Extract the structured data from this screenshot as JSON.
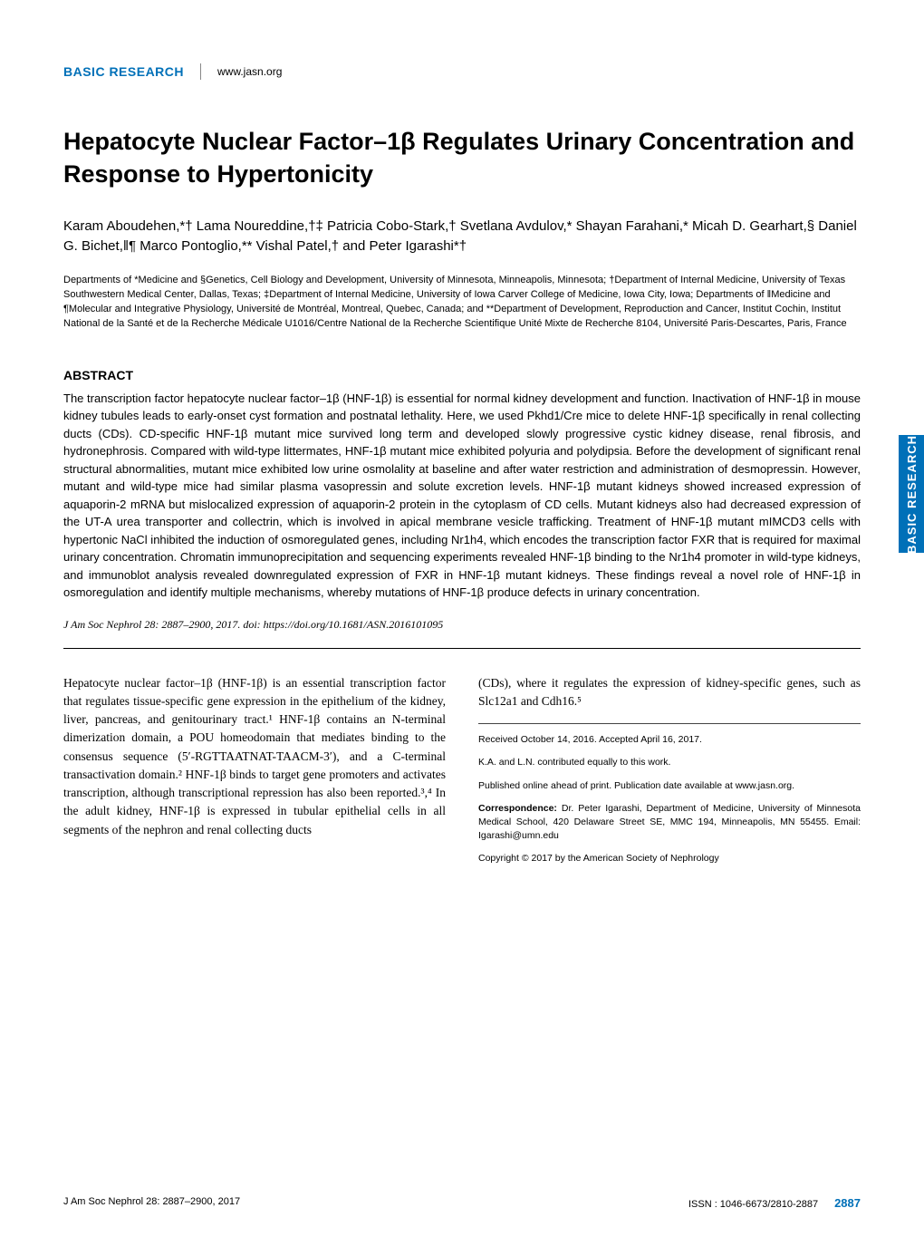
{
  "header": {
    "section_label": "BASIC RESEARCH",
    "section_color": "#0070b8",
    "website": "www.jasn.org"
  },
  "title": "Hepatocyte Nuclear Factor–1β Regulates Urinary Concentration and Response to Hypertonicity",
  "authors": "Karam Aboudehen,*† Lama Noureddine,†‡ Patricia Cobo-Stark,† Svetlana Avdulov,* Shayan Farahani,* Micah D. Gearhart,§ Daniel G. Bichet,‖¶ Marco Pontoglio,** Vishal Patel,† and Peter Igarashi*†",
  "affiliations": "Departments of *Medicine and §Genetics, Cell Biology and Development, University of Minnesota, Minneapolis, Minnesota; †Department of Internal Medicine, University of Texas Southwestern Medical Center, Dallas, Texas; ‡Department of Internal Medicine, University of Iowa Carver College of Medicine, Iowa City, Iowa; Departments of ‖Medicine and ¶Molecular and Integrative Physiology, Université de Montréal, Montreal, Quebec, Canada; and **Department of Development, Reproduction and Cancer, Institut Cochin, Institut National de la Santé et de la Recherche Médicale U1016/Centre National de la Recherche Scientifique Unité Mixte de Recherche 8104, Université Paris-Descartes, Paris, France",
  "abstract": {
    "heading": "ABSTRACT",
    "body": "The transcription factor hepatocyte nuclear factor–1β (HNF-1β) is essential for normal kidney development and function. Inactivation of HNF-1β in mouse kidney tubules leads to early-onset cyst formation and postnatal lethality. Here, we used Pkhd1/Cre mice to delete HNF-1β specifically in renal collecting ducts (CDs). CD-specific HNF-1β mutant mice survived long term and developed slowly progressive cystic kidney disease, renal fibrosis, and hydronephrosis. Compared with wild-type littermates, HNF-1β mutant mice exhibited polyuria and polydipsia. Before the development of significant renal structural abnormalities, mutant mice exhibited low urine osmolality at baseline and after water restriction and administration of desmopressin. However, mutant and wild-type mice had similar plasma vasopressin and solute excretion levels. HNF-1β mutant kidneys showed increased expression of aquaporin-2 mRNA but mislocalized expression of aquaporin-2 protein in the cytoplasm of CD cells. Mutant kidneys also had decreased expression of the UT-A urea transporter and collectrin, which is involved in apical membrane vesicle trafficking. Treatment of HNF-1β mutant mIMCD3 cells with hypertonic NaCl inhibited the induction of osmoregulated genes, including Nr1h4, which encodes the transcription factor FXR that is required for maximal urinary concentration. Chromatin immunoprecipitation and sequencing experiments revealed HNF-1β binding to the Nr1h4 promoter in wild-type kidneys, and immunoblot analysis revealed downregulated expression of FXR in HNF-1β mutant kidneys. These findings reveal a novel role of HNF-1β in osmoregulation and identify multiple mechanisms, whereby mutations of HNF-1β produce defects in urinary concentration."
  },
  "citation": "J Am Soc Nephrol 28: 2887–2900, 2017. doi: https://doi.org/10.1681/ASN.2016101095",
  "body_columns": {
    "left": "Hepatocyte nuclear factor–1β (HNF-1β) is an essential transcription factor that regulates tissue-specific gene expression in the epithelium of the kidney, liver, pancreas, and genitourinary tract.¹ HNF-1β contains an N-terminal dimerization domain, a POU homeodomain that mediates binding to the consensus sequence (5′-RGTTAATNAT-TAACM-3′), and a C-terminal transactivation domain.² HNF-1β binds to target gene promoters and activates transcription, although transcriptional repression has also been reported.³,⁴ In the adult kidney, HNF-1β is expressed in tubular epithelial cells in all segments of the nephron and renal collecting ducts",
    "right_intro": "(CDs), where it regulates the expression of kidney-specific genes, such as Slc12a1 and Cdh16.⁵",
    "right_meta": {
      "received": "Received October 14, 2016. Accepted April 16, 2017.",
      "contrib": "K.A. and L.N. contributed equally to this work.",
      "pub": "Published online ahead of print. Publication date available at www.jasn.org.",
      "correspondence_label": "Correspondence:",
      "correspondence": " Dr. Peter Igarashi, Department of Medicine, University of Minnesota Medical School, 420 Delaware Street SE, MMC 194, Minneapolis, MN 55455. Email: Igarashi@umn.edu",
      "copyright": "Copyright © 2017 by the American Society of Nephrology"
    }
  },
  "side_tab": {
    "label": "BASIC RESEARCH",
    "bg_color": "#0070b8",
    "text_color": "#ffffff"
  },
  "footer": {
    "left": "J Am Soc Nephrol 28: 2887–2900, 2017",
    "issn": "ISSN : 1046-6673/2810-2887",
    "page": "2887",
    "page_color": "#0070b8"
  },
  "colors": {
    "accent": "#0070b8",
    "text": "#000000",
    "bg": "#ffffff"
  }
}
